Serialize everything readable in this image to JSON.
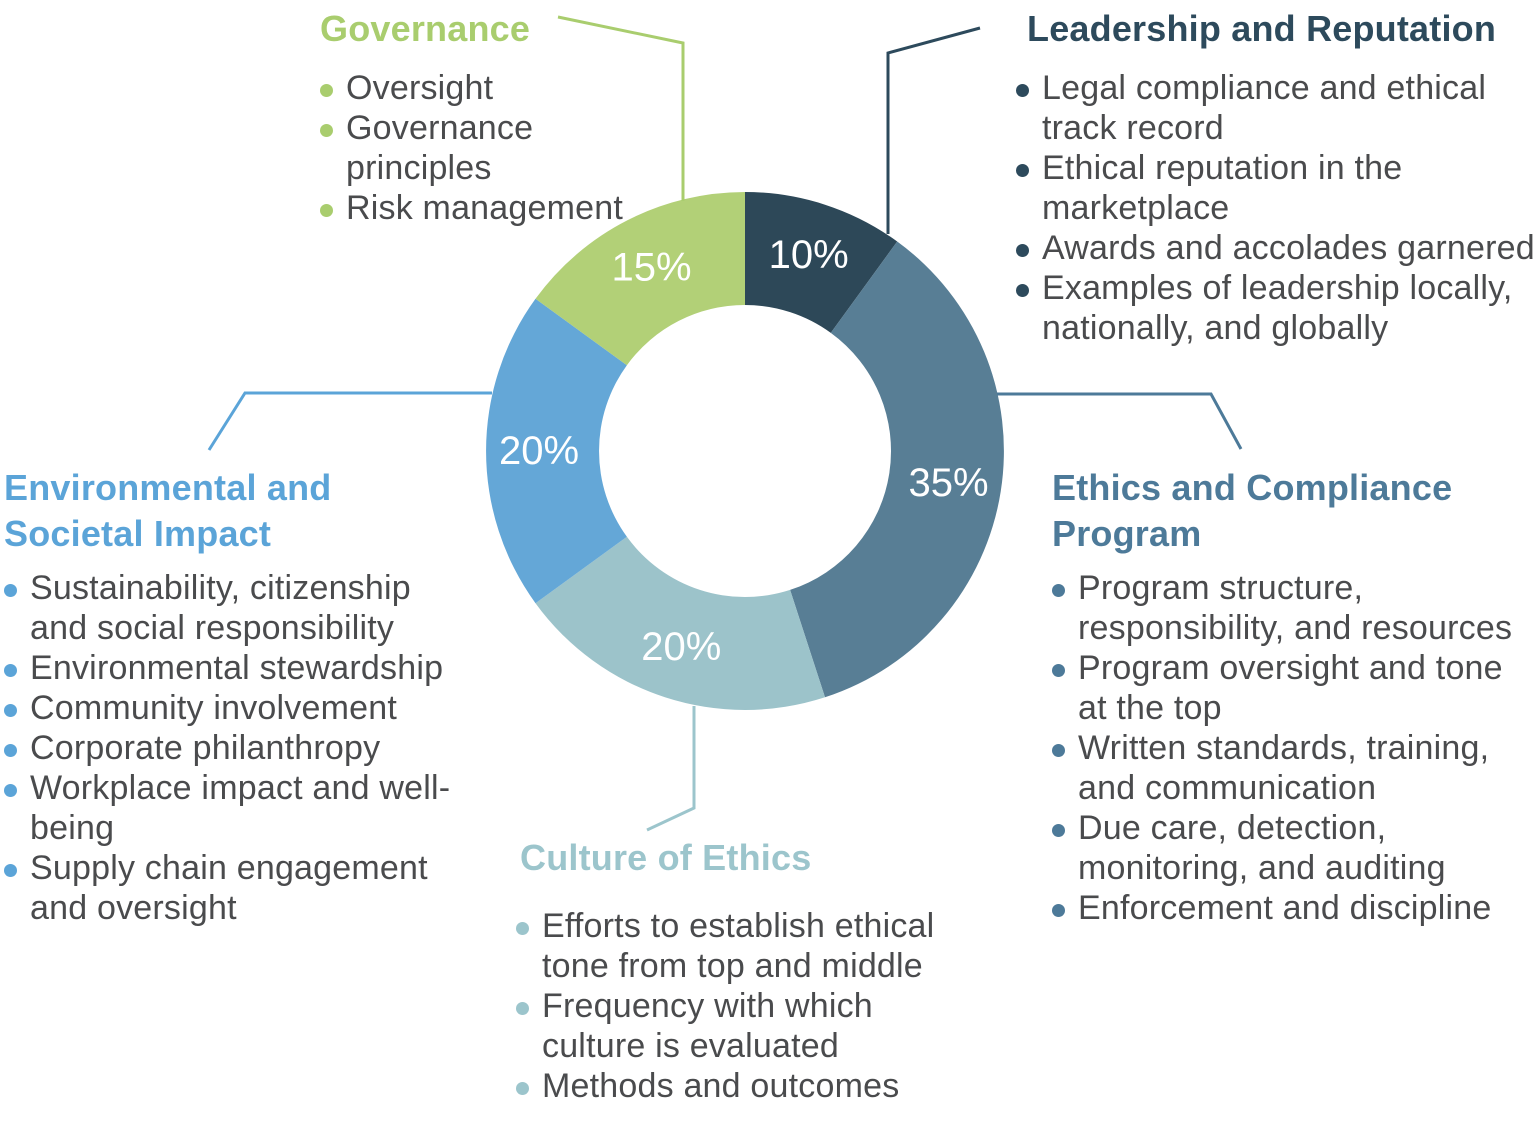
{
  "chart_data": {
    "type": "pie",
    "variant": "donut",
    "start_angle_deg": 0,
    "direction": "clockwise",
    "inner_radius_ratio": 0.564,
    "label_color": "#ffffff",
    "categories": [
      "Leadership and Reputation",
      "Ethics and Compliance Program",
      "Culture of Ethics",
      "Environmental and Societal Impact",
      "Governance"
    ],
    "values": [
      10,
      35,
      20,
      20,
      15
    ],
    "slices": [
      {
        "category": "Leadership and Reputation",
        "value": 10,
        "display_label": "10%",
        "color": "#2d4858"
      },
      {
        "category": "Ethics and Compliance Program",
        "value": 35,
        "display_label": "35%",
        "color": "#587e95"
      },
      {
        "category": "Culture of Ethics",
        "value": 20,
        "display_label": "20%",
        "color": "#9cc3ca"
      },
      {
        "category": "Environmental and Societal Impact",
        "value": 20,
        "display_label": "20%",
        "color": "#64a7d7"
      },
      {
        "category": "Governance",
        "value": 15,
        "display_label": "15%",
        "color": "#b2d077"
      }
    ]
  },
  "text_color": "#4a4b4d",
  "sections": {
    "governance": {
      "title_lines": [
        "Governance"
      ],
      "accent": "#a9cd6e",
      "bullets": [
        [
          "Oversight"
        ],
        [
          "Governance",
          "principles"
        ],
        [
          "Risk management"
        ]
      ]
    },
    "leadership": {
      "title_lines": [
        "Leadership and Reputation"
      ],
      "accent": "#2d4a5c",
      "bullets": [
        [
          "Legal compliance and ethical",
          "track record"
        ],
        [
          "Ethical reputation in the",
          "marketplace"
        ],
        [
          "Awards and accolades garnered"
        ],
        [
          "Examples of leadership locally,",
          "nationally, and globally"
        ]
      ]
    },
    "ethics": {
      "title_lines": [
        "Ethics and Compliance",
        "Program"
      ],
      "accent": "#4d7a99",
      "bullets": [
        [
          "Program structure,",
          "responsibility, and resources"
        ],
        [
          "Program oversight and tone",
          "at the top"
        ],
        [
          "Written standards, training,",
          "and communication"
        ],
        [
          "Due care, detection,",
          "monitoring, and auditing"
        ],
        [
          "Enforcement and discipline"
        ]
      ]
    },
    "environmental": {
      "title_lines": [
        "Environmental and",
        "Societal Impact"
      ],
      "accent": "#5ba4d8",
      "bullets": [
        [
          "Sustainability, citizenship",
          "and social responsibility"
        ],
        [
          "Environmental stewardship"
        ],
        [
          "Community involvement"
        ],
        [
          "Corporate philanthropy"
        ],
        [
          "Workplace impact and well-",
          "being"
        ],
        [
          "Supply chain engagement",
          "and oversight"
        ]
      ]
    },
    "culture": {
      "title_lines": [
        "Culture of Ethics"
      ],
      "accent": "#9cc5cc",
      "bullets": [
        [
          "Efforts to establish ethical",
          "tone from top and middle"
        ],
        [
          "Frequency with which",
          "culture is evaluated"
        ],
        [
          "Methods and outcomes"
        ]
      ]
    }
  }
}
